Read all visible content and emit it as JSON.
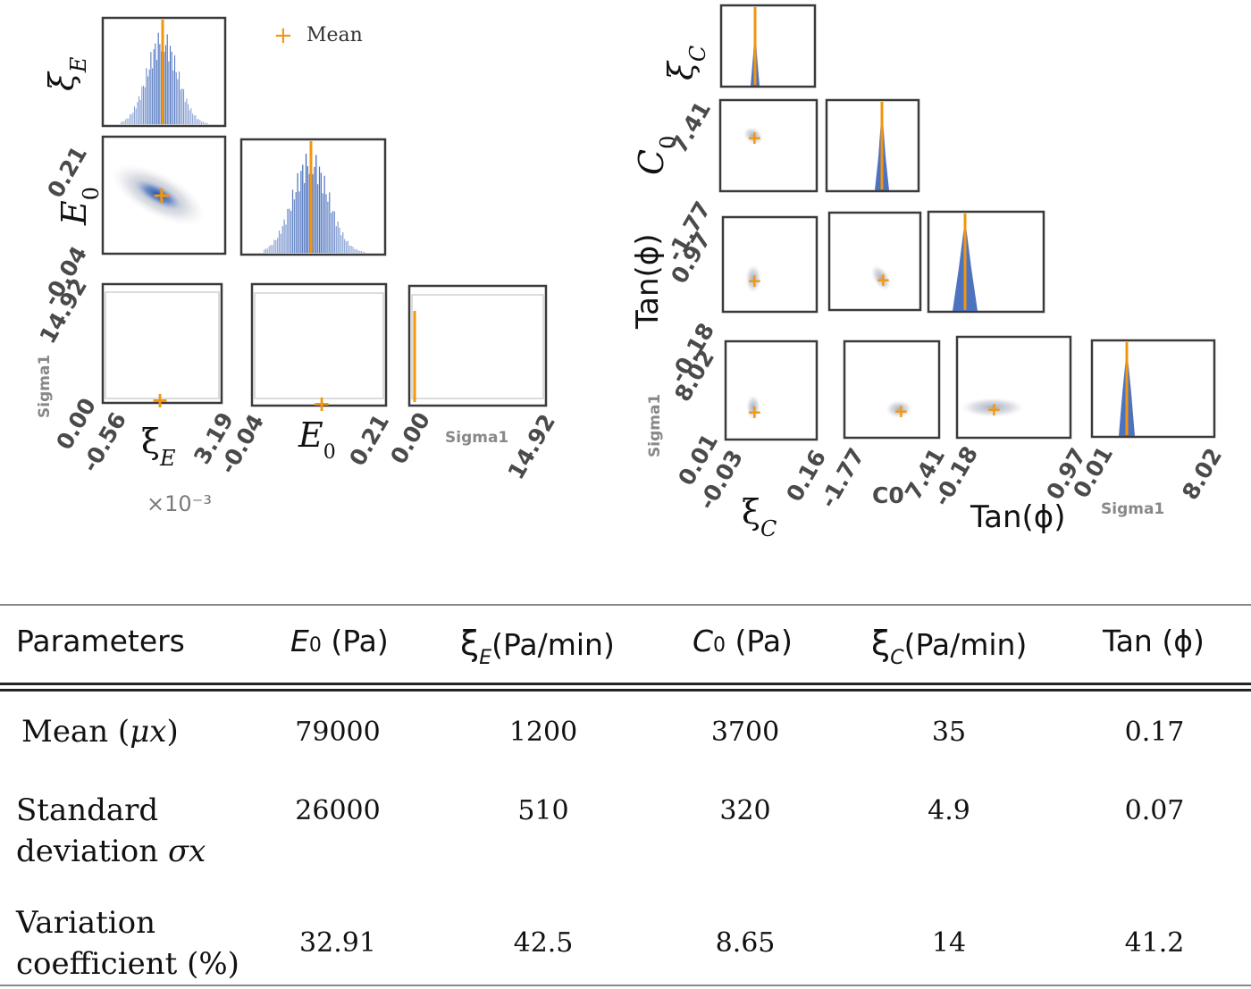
{
  "chart_data": [
    {
      "type": "scatter",
      "subtype": "corner_plot",
      "parameters": [
        "ξ_E",
        "E₀",
        "Sigma1"
      ],
      "legend": {
        "label": "Mean",
        "marker": "+",
        "color": "#f2960f",
        "placement": "top"
      },
      "multiplier": "×10⁻³",
      "axis_labels": {
        "x": [
          "ξ",
          "E",
          "Sigma1"
        ],
        "y": [
          "ξ",
          "E",
          "Sigma1"
        ],
        "x_sub": [
          "E",
          "0",
          ""
        ],
        "y_sub": [
          "E",
          "0",
          ""
        ]
      },
      "tick_labels": {
        "xi_E": [
          "-0.56",
          "3.19"
        ],
        "E0": [
          "-0.04",
          "0.21"
        ],
        "Sigma1": [
          "0.00",
          "14.92"
        ]
      },
      "ranges": {
        "xi_E": [
          -0.56,
          3.19
        ],
        "E0": [
          -0.04,
          0.21
        ],
        "Sigma1": [
          0.0,
          14.92
        ]
      },
      "means": {
        "xi_E": 1.2,
        "E0": 0.079,
        "Sigma1": 0.05
      }
    },
    {
      "type": "scatter",
      "subtype": "corner_plot",
      "parameters": [
        "ξ_C",
        "C₀",
        "Tan(ϕ)",
        "Sigma1"
      ],
      "axis_labels": {
        "x": [
          "ξ",
          "C0",
          "Tan(ϕ)",
          "Sigma1"
        ],
        "y": [
          "ξ",
          "C",
          "Tan(ϕ)",
          "Sigma1"
        ],
        "x_sub": [
          "C",
          "",
          "",
          ""
        ],
        "y_sub": [
          "C",
          "0",
          "",
          ""
        ]
      },
      "tick_labels": {
        "xi_C": [
          "-0.03",
          "0.16"
        ],
        "C0": [
          "-1.77",
          "7.41"
        ],
        "Tan_phi": [
          "-0.18",
          "0.97"
        ],
        "Sigma1": [
          "0.01",
          "8.02"
        ]
      },
      "ranges": {
        "xi_C": [
          -0.03,
          0.16
        ],
        "C0": [
          -1.77,
          7.41
        ],
        "Tan_phi": [
          -0.18,
          0.97
        ],
        "Sigma1": [
          0.01,
          8.02
        ]
      },
      "means": {
        "xi_C": 0.035,
        "C0": 3.7,
        "Tan_phi": 0.17,
        "Sigma1": 2.3
      }
    },
    {
      "type": "table",
      "columns": [
        {
          "symbol": "E",
          "sub": "0",
          "unit": "(Pa)"
        },
        {
          "symbol": "ξ",
          "sub": "E",
          "unit": "(Pa/min)"
        },
        {
          "symbol": "C",
          "sub": "0",
          "unit": "(Pa)"
        },
        {
          "symbol": "ξ",
          "sub": "C",
          "unit": "(Pa/min)"
        },
        {
          "symbol": "Tan (ϕ)",
          "sub": "",
          "unit": ""
        }
      ],
      "header_first": "Parameters",
      "rows": [
        {
          "label": [
            "Mean (",
            "μx",
            ")"
          ],
          "values": [
            "79000",
            "1200",
            "3700",
            "35",
            "0.17"
          ]
        },
        {
          "label": [
            "Standard",
            "deviation ",
            "σx"
          ],
          "values": [
            "26000",
            "510",
            "320",
            "4.9",
            "0.07"
          ]
        },
        {
          "label": [
            "Variation",
            "coefficient (%)"
          ],
          "values": [
            "32.91",
            "42.5",
            "8.65",
            "14",
            "41.2"
          ]
        }
      ]
    }
  ],
  "colors": {
    "mean": "#f2960f",
    "hist": "#2f5bb3",
    "density": "#6f8fc9",
    "frame": "#3a3a3a"
  }
}
